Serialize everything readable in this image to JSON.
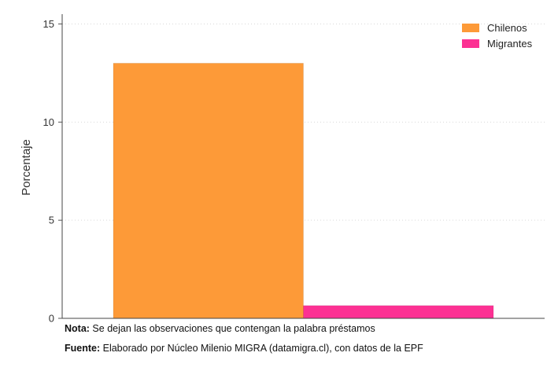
{
  "chart_data": {
    "type": "bar",
    "ylabel": "Porcentaje",
    "ylim": [
      0,
      15.5
    ],
    "yticks": [
      0,
      5,
      10,
      15
    ],
    "grid": true,
    "legend_position": "top-right",
    "series": [
      {
        "name": "Chilenos",
        "value": 13.0,
        "color": "#fd9a38"
      },
      {
        "name": "Migrantes",
        "value": 0.65,
        "color": "#fc3193"
      }
    ]
  },
  "notes": {
    "note_label": "Nota:",
    "note_text": " Se dejan las observaciones que contengan la palabra préstamos",
    "source_label": "Fuente:",
    "source_text": " Elaborado por Núcleo Milenio MIGRA (datamigra.cl), con datos de la EPF"
  }
}
